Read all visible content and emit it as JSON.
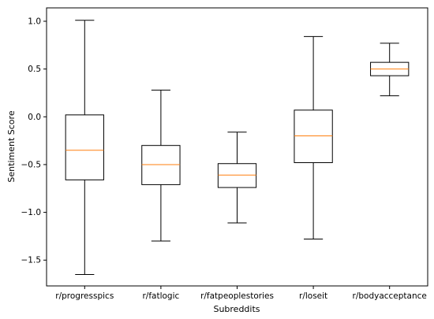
{
  "chart_data": {
    "type": "box",
    "title": "",
    "xlabel": "Subreddits",
    "ylabel": "Sentiment Score",
    "ylim": [
      -1.77,
      1.14
    ],
    "yticks": [
      1.0,
      0.5,
      0.0,
      -0.5,
      -1.0,
      -1.5
    ],
    "ytick_labels": [
      "1.0",
      "0.5",
      "0.0",
      "−0.5",
      "−1.0",
      "−1.5"
    ],
    "categories": [
      "r/progresspics",
      "r/fatlogic",
      "r/fatpeoplestories",
      "r/loseit",
      "r/bodyacceptance"
    ],
    "boxes": [
      {
        "category": "r/progresspics",
        "whisker_low": -1.65,
        "q1": -0.66,
        "median": -0.35,
        "q3": 0.02,
        "whisker_high": 1.01
      },
      {
        "category": "r/fatlogic",
        "whisker_low": -1.3,
        "q1": -0.71,
        "median": -0.5,
        "q3": -0.3,
        "whisker_high": 0.28
      },
      {
        "category": "r/fatpeoplestories",
        "whisker_low": -1.11,
        "q1": -0.74,
        "median": -0.61,
        "q3": -0.49,
        "whisker_high": -0.16
      },
      {
        "category": "r/loseit",
        "whisker_low": -1.28,
        "q1": -0.48,
        "median": -0.2,
        "q3": 0.07,
        "whisker_high": 0.84
      },
      {
        "category": "r/bodyacceptance",
        "whisker_low": 0.22,
        "q1": 0.43,
        "median": 0.5,
        "q3": 0.57,
        "whisker_high": 0.77
      }
    ],
    "colors": {
      "box": "#000000",
      "median": "#ff7f0e"
    },
    "grid": false,
    "legend": "none"
  }
}
